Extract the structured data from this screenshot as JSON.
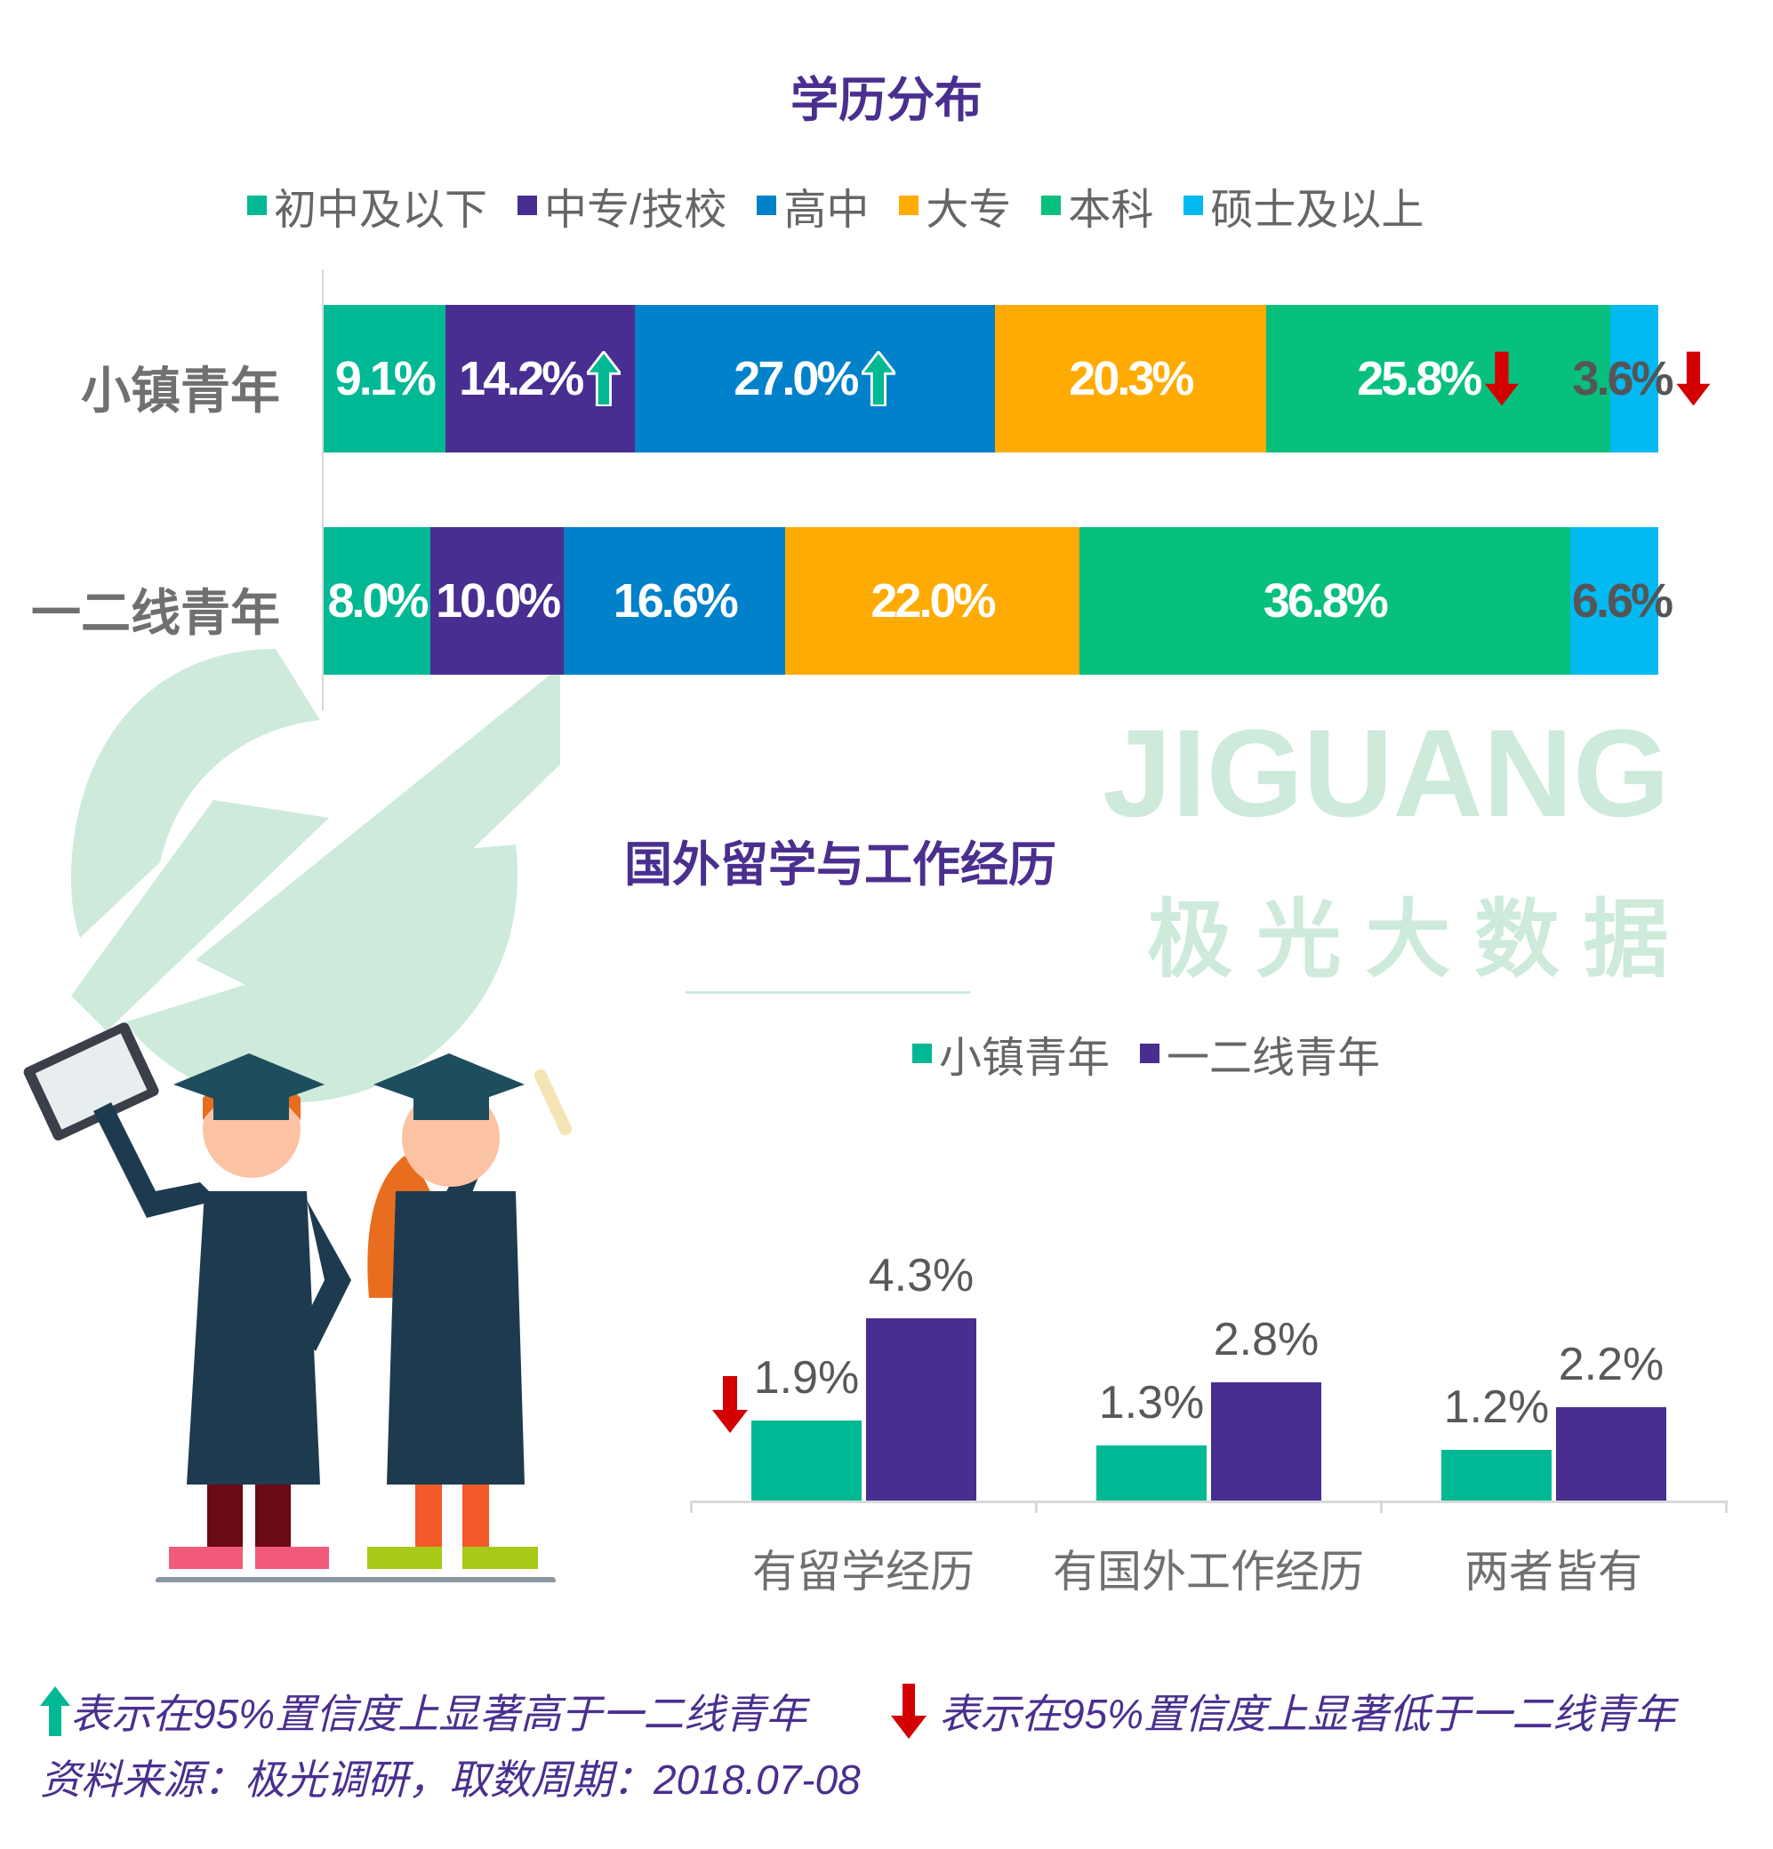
{
  "watermark": {
    "brand": "JIGUANG",
    "cn": "极 光 大 数 据"
  },
  "colors": {
    "up": "#00b894",
    "down": "#d40000",
    "green": "#00b894",
    "purple": "#482e91"
  },
  "chart_data": [
    {
      "type": "bar",
      "stacked": true,
      "orientation": "horizontal",
      "title": "学历分布",
      "legend_position": "top",
      "categories": [
        "小镇青年",
        "一二线青年"
      ],
      "series": [
        {
          "name": "初中及以下",
          "color": "#00b894",
          "values": [
            9.1,
            8.0
          ],
          "labels": [
            "9.1%",
            "8.0%"
          ],
          "sig": [
            "",
            ""
          ]
        },
        {
          "name": "中专/技校",
          "color": "#482e91",
          "values": [
            14.2,
            10.0
          ],
          "labels": [
            "14.2%",
            "10.0%"
          ],
          "sig": [
            "up",
            ""
          ]
        },
        {
          "name": "高中",
          "color": "#0281cb",
          "values": [
            27.0,
            16.6
          ],
          "labels": [
            "27.0%",
            "16.6%"
          ],
          "sig": [
            "up",
            ""
          ]
        },
        {
          "name": "大专",
          "color": "#ffab03",
          "values": [
            20.3,
            22.0
          ],
          "labels": [
            "20.3%",
            "22.0%"
          ],
          "sig": [
            "",
            ""
          ]
        },
        {
          "name": "本科",
          "color": "#07c07e",
          "values": [
            25.8,
            36.8
          ],
          "labels": [
            "25.8%",
            "36.8%"
          ],
          "sig": [
            "down",
            ""
          ]
        },
        {
          "name": "硕士及以上",
          "color": "#02b9f1",
          "values": [
            3.6,
            6.6
          ],
          "labels": [
            "3.6%",
            "6.6%"
          ],
          "sig": [
            "down",
            ""
          ]
        }
      ]
    },
    {
      "type": "bar",
      "title": "国外留学与工作经历",
      "legend_position": "top",
      "categories": [
        "有留学经历",
        "有国外工作经历",
        "两者皆有"
      ],
      "series": [
        {
          "name": "小镇青年",
          "color": "#00b894",
          "values": [
            1.9,
            1.3,
            1.2
          ],
          "labels": [
            "1.9%",
            "1.3%",
            "1.2%"
          ],
          "sig": [
            "down",
            "",
            ""
          ]
        },
        {
          "name": "一二线青年",
          "color": "#482e91",
          "values": [
            4.3,
            2.8,
            2.2
          ],
          "labels": [
            "4.3%",
            "2.8%",
            "2.2%"
          ],
          "sig": [
            "",
            "",
            ""
          ]
        }
      ],
      "ylim": [
        0,
        4.3
      ]
    }
  ],
  "footer": {
    "up_note": "表示在95%置信度上显著高于一二线青年",
    "down_note": "表示在95%置信度上显著低于一二线青年",
    "source": "资料来源：极光调研，取数周期：2018.07-08"
  }
}
